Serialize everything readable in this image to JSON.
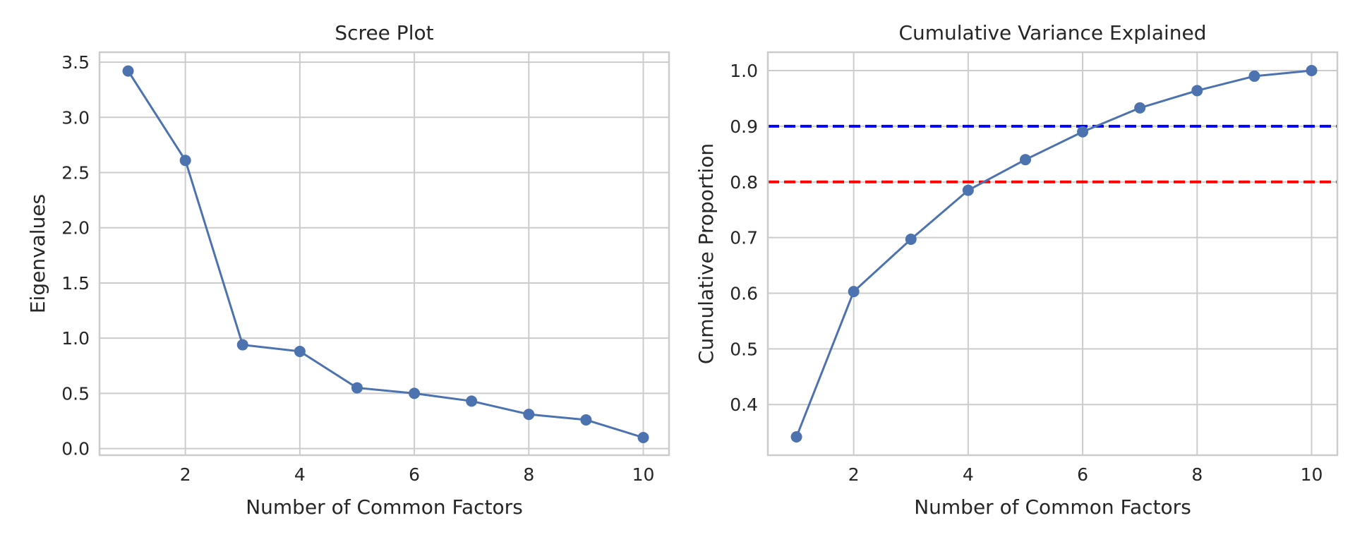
{
  "chart_data": [
    {
      "type": "line",
      "title": "Scree Plot",
      "xlabel": "Number of Common Factors",
      "ylabel": "Eigenvalues",
      "x": [
        1,
        2,
        3,
        4,
        5,
        6,
        7,
        8,
        9,
        10
      ],
      "series": [
        {
          "values": [
            3.42,
            2.61,
            0.94,
            0.88,
            0.55,
            0.5,
            0.43,
            0.31,
            0.26,
            0.1
          ],
          "color": "#4c72b0",
          "marker": "circle"
        }
      ],
      "xlim": [
        0.5,
        10.45
      ],
      "ylim": [
        -0.06,
        3.59
      ],
      "xticks": [
        2,
        4,
        6,
        8,
        10
      ],
      "xtick_labels": [
        "2",
        "4",
        "6",
        "8",
        "10"
      ],
      "yticks": [
        0.0,
        0.5,
        1.0,
        1.5,
        2.0,
        2.5,
        3.0,
        3.5
      ],
      "ytick_labels": [
        "0.0",
        "0.5",
        "1.0",
        "1.5",
        "2.0",
        "2.5",
        "3.0",
        "3.5"
      ],
      "grid": true
    },
    {
      "type": "line",
      "title": "Cumulative Variance Explained",
      "xlabel": "Number of Common Factors",
      "ylabel": "Cumulative Proportion",
      "x": [
        1,
        2,
        3,
        4,
        5,
        6,
        7,
        8,
        9,
        10
      ],
      "series": [
        {
          "values": [
            0.342,
            0.603,
            0.697,
            0.785,
            0.84,
            0.89,
            0.933,
            0.964,
            0.99,
            1.0
          ],
          "color": "#4c72b0",
          "marker": "circle"
        }
      ],
      "reference_lines": [
        {
          "y": 0.9,
          "color": "#0000ff",
          "style": "dashed"
        },
        {
          "y": 0.8,
          "color": "#ff0000",
          "style": "dashed"
        }
      ],
      "xlim": [
        0.5,
        10.45
      ],
      "ylim": [
        0.309,
        1.033
      ],
      "xticks": [
        2,
        4,
        6,
        8,
        10
      ],
      "xtick_labels": [
        "2",
        "4",
        "6",
        "8",
        "10"
      ],
      "yticks": [
        0.4,
        0.5,
        0.6,
        0.7,
        0.8,
        0.9,
        1.0
      ],
      "ytick_labels": [
        "0.4",
        "0.5",
        "0.6",
        "0.7",
        "0.8",
        "0.9",
        "1.0"
      ],
      "grid": true
    }
  ]
}
